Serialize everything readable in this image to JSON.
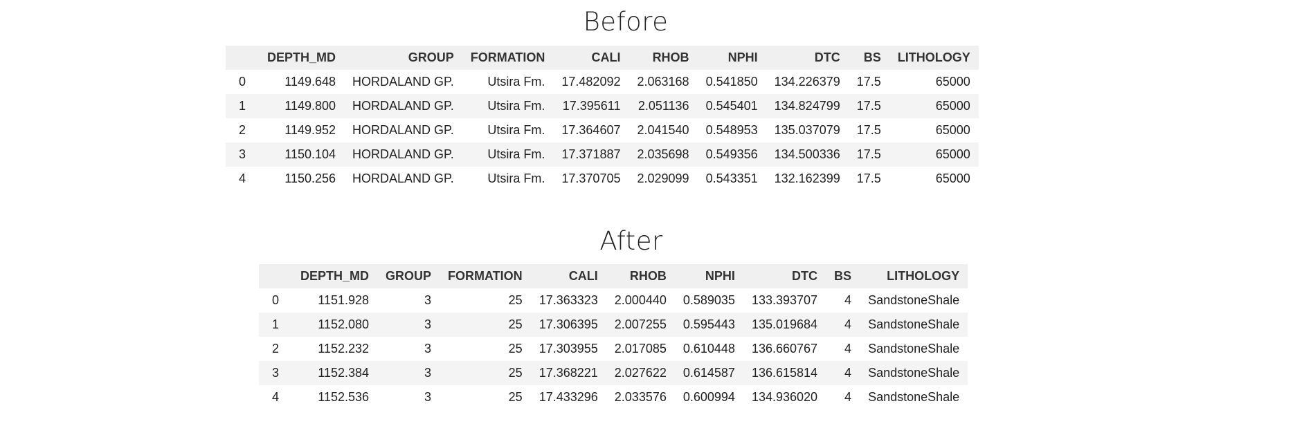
{
  "before": {
    "title": "Before",
    "columns": [
      "",
      "DEPTH_MD",
      "GROUP",
      "FORMATION",
      "CALI",
      "RHOB",
      "NPHI",
      "DTC",
      "BS",
      "LITHOLOGY"
    ],
    "rows": [
      [
        "0",
        "1149.648",
        "HORDALAND GP.",
        "Utsira Fm.",
        "17.482092",
        "2.063168",
        "0.541850",
        "134.226379",
        "17.5",
        "65000"
      ],
      [
        "1",
        "1149.800",
        "HORDALAND GP.",
        "Utsira Fm.",
        "17.395611",
        "2.051136",
        "0.545401",
        "134.824799",
        "17.5",
        "65000"
      ],
      [
        "2",
        "1149.952",
        "HORDALAND GP.",
        "Utsira Fm.",
        "17.364607",
        "2.041540",
        "0.548953",
        "135.037079",
        "17.5",
        "65000"
      ],
      [
        "3",
        "1150.104",
        "HORDALAND GP.",
        "Utsira Fm.",
        "17.371887",
        "2.035698",
        "0.549356",
        "134.500336",
        "17.5",
        "65000"
      ],
      [
        "4",
        "1150.256",
        "HORDALAND GP.",
        "Utsira Fm.",
        "17.370705",
        "2.029099",
        "0.543351",
        "132.162399",
        "17.5",
        "65000"
      ]
    ]
  },
  "after": {
    "title": "After",
    "columns": [
      "",
      "DEPTH_MD",
      "GROUP",
      "FORMATION",
      "CALI",
      "RHOB",
      "NPHI",
      "DTC",
      "BS",
      "LITHOLOGY"
    ],
    "rows": [
      [
        "0",
        "1151.928",
        "3",
        "25",
        "17.363323",
        "2.000440",
        "0.589035",
        "133.393707",
        "4",
        "SandstoneShale"
      ],
      [
        "1",
        "1152.080",
        "3",
        "25",
        "17.306395",
        "2.007255",
        "0.595443",
        "135.019684",
        "4",
        "SandstoneShale"
      ],
      [
        "2",
        "1152.232",
        "3",
        "25",
        "17.303955",
        "2.017085",
        "0.610448",
        "136.660767",
        "4",
        "SandstoneShale"
      ],
      [
        "3",
        "1152.384",
        "3",
        "25",
        "17.368221",
        "2.027622",
        "0.614587",
        "136.615814",
        "4",
        "SandstoneShale"
      ],
      [
        "4",
        "1152.536",
        "3",
        "25",
        "17.433296",
        "2.033576",
        "0.600994",
        "134.936020",
        "4",
        "SandstoneShale"
      ]
    ]
  }
}
